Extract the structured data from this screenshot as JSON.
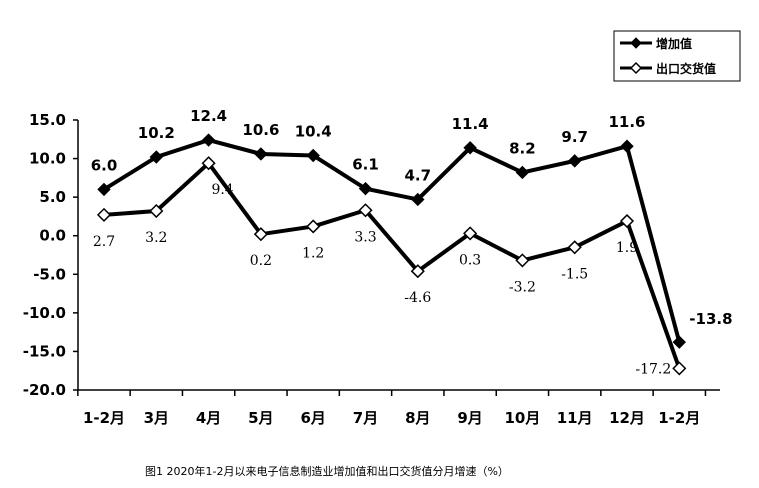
{
  "chart_data": {
    "type": "line",
    "categories": [
      "1-2月",
      "3月",
      "4月",
      "5月",
      "6月",
      "7月",
      "8月",
      "9月",
      "10月",
      "11月",
      "12月",
      "1-2月"
    ],
    "series": [
      {
        "name": "增加值",
        "values": [
          6.0,
          10.2,
          12.4,
          10.6,
          10.4,
          6.1,
          4.7,
          11.4,
          8.2,
          9.7,
          11.6,
          -13.8
        ],
        "labels": [
          "6.0",
          "10.2",
          "12.4",
          "10.6",
          "10.4",
          "6.1",
          "4.7",
          "11.4",
          "8.2",
          "9.7",
          "11.6",
          "-13.8"
        ],
        "marker": "filled-diamond",
        "color": "#000000"
      },
      {
        "name": "出口交货值",
        "values": [
          2.7,
          3.2,
          9.4,
          0.2,
          1.2,
          3.3,
          -4.6,
          0.3,
          -3.2,
          -1.5,
          1.9,
          -17.2
        ],
        "labels": [
          "2.7",
          "3.2",
          "9.4",
          "0.2",
          "1.2",
          "3.3",
          "-4.6",
          "0.3",
          "-3.2",
          "-1.5",
          "1.9",
          "-17.2"
        ],
        "marker": "hollow-diamond",
        "color": "#000000"
      }
    ],
    "yticks": [
      "15.0",
      "10.0",
      "5.0",
      "0.0",
      "-5.0",
      "-10.0",
      "-15.0",
      "-20.0"
    ],
    "ylim": [
      -20,
      15
    ],
    "grid": false,
    "legend": "top-right",
    "caption": "图1   2020年1-2月以来电子信息制造业增加值和出口交货值分月增速（%）"
  }
}
